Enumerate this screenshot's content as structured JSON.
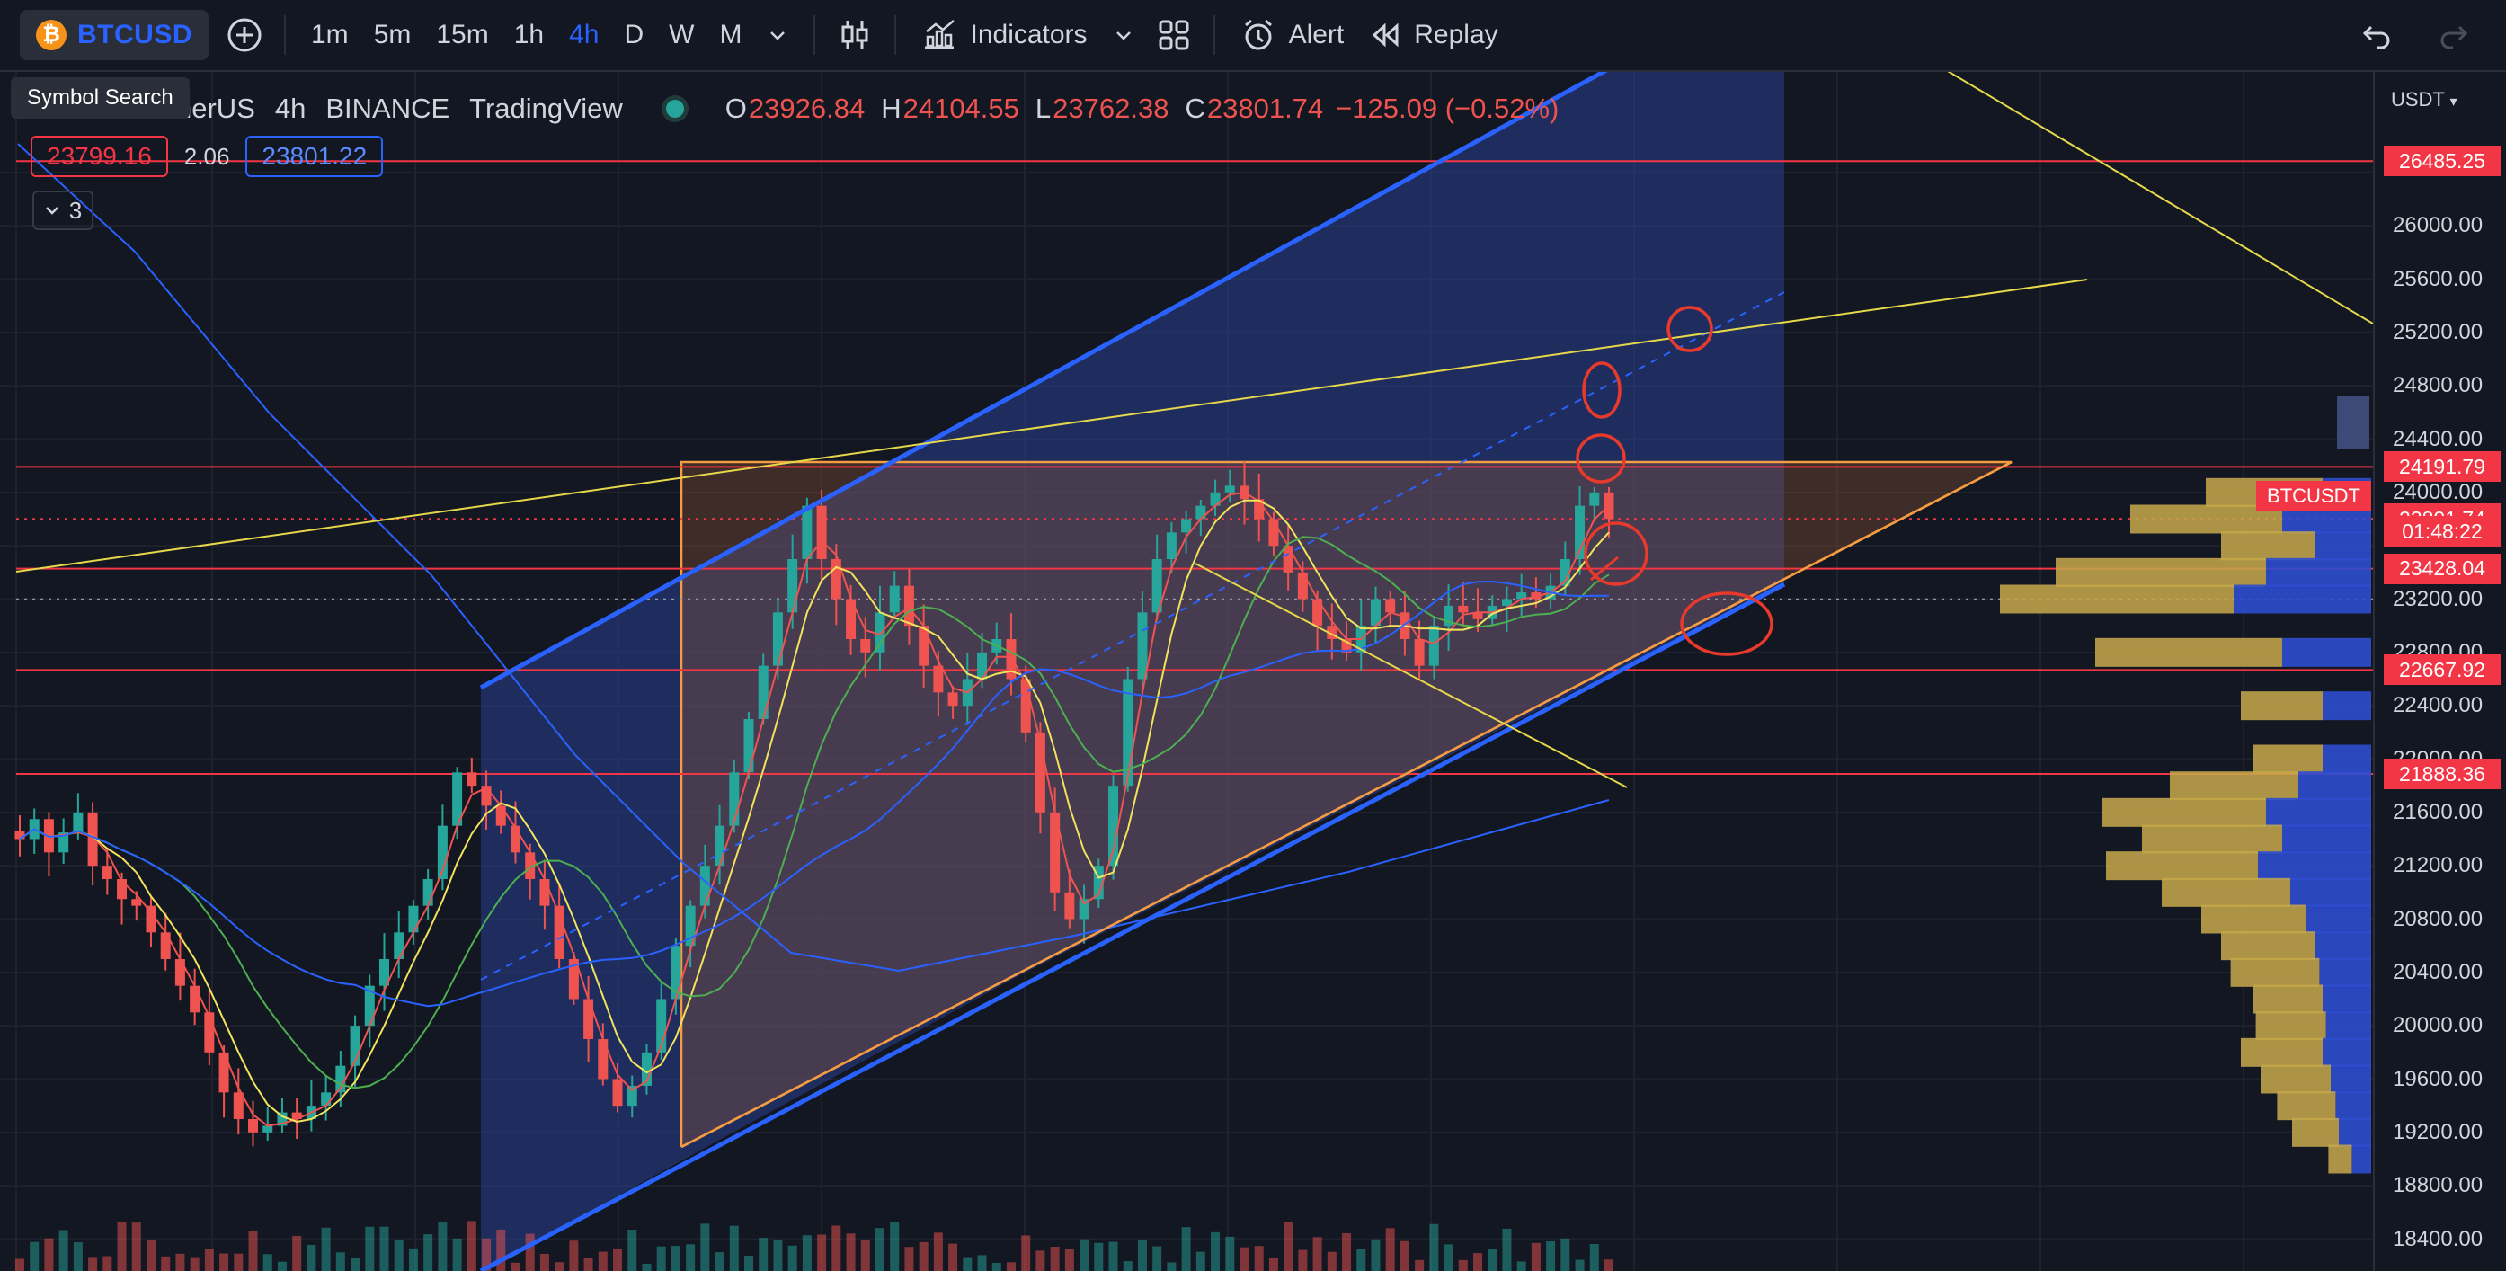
{
  "toolbar": {
    "symbol": "BTCUSD",
    "symbol_logo": "₿",
    "add_symbol_icon": "plus-circle-icon",
    "intervals": [
      "1m",
      "5m",
      "15m",
      "1h",
      "4h",
      "D",
      "W",
      "M"
    ],
    "active_interval": "4h",
    "chart_type_icon": "candles-icon",
    "indicators_label": "Indicators",
    "layout_icon": "grid-icon",
    "alert_label": "Alert",
    "replay_label": "Replay",
    "undo_icon": "undo-icon",
    "redo_icon": "redo-icon"
  },
  "tooltip": {
    "text": "Symbol Search"
  },
  "legend": {
    "title_fragment": "nerUS",
    "interval": "4h",
    "exchange": "BINANCE",
    "source": "TradingView",
    "open_label": "O",
    "open": "23926.84",
    "high_label": "H",
    "high": "24104.55",
    "low_label": "L",
    "low": "23762.38",
    "close_label": "C",
    "close": "23801.74",
    "change": "−125.09 (−0.52%)",
    "bid": "23799.16",
    "spread": "2.06",
    "ask": "23801.22",
    "collapse_count": "3"
  },
  "price_axis": {
    "currency": "USDT",
    "ticks": [
      "26000.00",
      "25600.00",
      "25200.00",
      "24800.00",
      "24400.00",
      "24000.00",
      "23200.00",
      "22800.00",
      "22400.00",
      "22000.00",
      "21600.00",
      "21200.00",
      "20800.00",
      "20400.00",
      "20000.00",
      "19600.00",
      "19200.00",
      "18800.00",
      "18400.00"
    ],
    "labels": [
      {
        "text": "26485.25",
        "color": "#f23645"
      },
      {
        "text": "24191.79",
        "color": "#f23645"
      },
      {
        "text": "23801.74",
        "color": "#f23645"
      },
      {
        "text": "01:48:22",
        "color": "#f23645"
      },
      {
        "text": "23428.04",
        "color": "#f23645"
      },
      {
        "text": "22667.92",
        "color": "#f23645"
      },
      {
        "text": "21888.36",
        "color": "#f23645"
      }
    ],
    "symbol_tag": "BTCUSDT"
  },
  "colors": {
    "bull": "#26a69a",
    "bear": "#ef5350",
    "accent": "#2962ff",
    "level_line": "#f23645",
    "trend_yellow": "#e6d84a",
    "triangle_orange": "#f59b42"
  },
  "chart_data": {
    "type": "candlestick",
    "symbol": "BTCUSD",
    "timeframe": "4h",
    "ylim": [
      18300,
      26600
    ],
    "horizontal_levels": [
      26485.25,
      24191.79,
      23428.04,
      22667.92,
      21888.36
    ],
    "last_price": 23801.74,
    "closes": [
      21400,
      21550,
      21300,
      21450,
      21600,
      21200,
      21100,
      20950,
      20900,
      20700,
      20500,
      20300,
      20100,
      19800,
      19500,
      19300,
      19200,
      19250,
      19350,
      19300,
      19400,
      19500,
      19700,
      20000,
      20300,
      20500,
      20700,
      20900,
      21100,
      21500,
      21900,
      21800,
      21650,
      21500,
      21300,
      21100,
      20900,
      20500,
      20200,
      19900,
      19600,
      19400,
      19550,
      19800,
      20200,
      20600,
      20900,
      21200,
      21500,
      21900,
      22300,
      22700,
      23100,
      23500,
      23900,
      23500,
      23200,
      22900,
      22800,
      23100,
      23300,
      23000,
      22700,
      22500,
      22400,
      22600,
      22800,
      22900,
      22600,
      22200,
      21600,
      21000,
      20800,
      20950,
      21200,
      21800,
      22600,
      23100,
      23500,
      23700,
      23800,
      23900,
      24000,
      24050,
      23950,
      23800,
      23600,
      23400,
      23200,
      23000,
      22900,
      22800,
      23000,
      23200,
      23100,
      22900,
      22700,
      23000,
      23150,
      23100,
      23050,
      23150,
      23200,
      23250,
      23200,
      23300,
      23500,
      23900,
      24000,
      23801.74
    ],
    "volume_profile": [
      {
        "price": 24000,
        "buy": 0.5,
        "sell": 0.3
      },
      {
        "price": 23800,
        "buy": 0.65,
        "sell": 0.55
      },
      {
        "price": 23600,
        "buy": 0.4,
        "sell": 0.35
      },
      {
        "price": 23400,
        "buy": 0.9,
        "sell": 0.65
      },
      {
        "price": 23200,
        "buy": 1.0,
        "sell": 0.85
      },
      {
        "price": 22800,
        "buy": 0.8,
        "sell": 0.55
      },
      {
        "price": 22400,
        "buy": 0.35,
        "sell": 0.3
      },
      {
        "price": 22000,
        "buy": 0.3,
        "sell": 0.3
      },
      {
        "price": 21800,
        "buy": 0.55,
        "sell": 0.45
      },
      {
        "price": 21600,
        "buy": 0.7,
        "sell": 0.65
      },
      {
        "price": 21400,
        "buy": 0.6,
        "sell": 0.55
      },
      {
        "price": 21200,
        "buy": 0.65,
        "sell": 0.7
      },
      {
        "price": 21000,
        "buy": 0.55,
        "sell": 0.5
      },
      {
        "price": 20800,
        "buy": 0.45,
        "sell": 0.4
      },
      {
        "price": 20600,
        "buy": 0.4,
        "sell": 0.35
      },
      {
        "price": 20400,
        "buy": 0.38,
        "sell": 0.32
      },
      {
        "price": 20200,
        "buy": 0.3,
        "sell": 0.3
      },
      {
        "price": 20000,
        "buy": 0.3,
        "sell": 0.28
      },
      {
        "price": 19800,
        "buy": 0.35,
        "sell": 0.3
      },
      {
        "price": 19600,
        "buy": 0.3,
        "sell": 0.25
      },
      {
        "price": 19400,
        "buy": 0.25,
        "sell": 0.22
      },
      {
        "price": 19200,
        "buy": 0.2,
        "sell": 0.2
      },
      {
        "price": 19000,
        "buy": 0.1,
        "sell": 0.12
      }
    ]
  }
}
